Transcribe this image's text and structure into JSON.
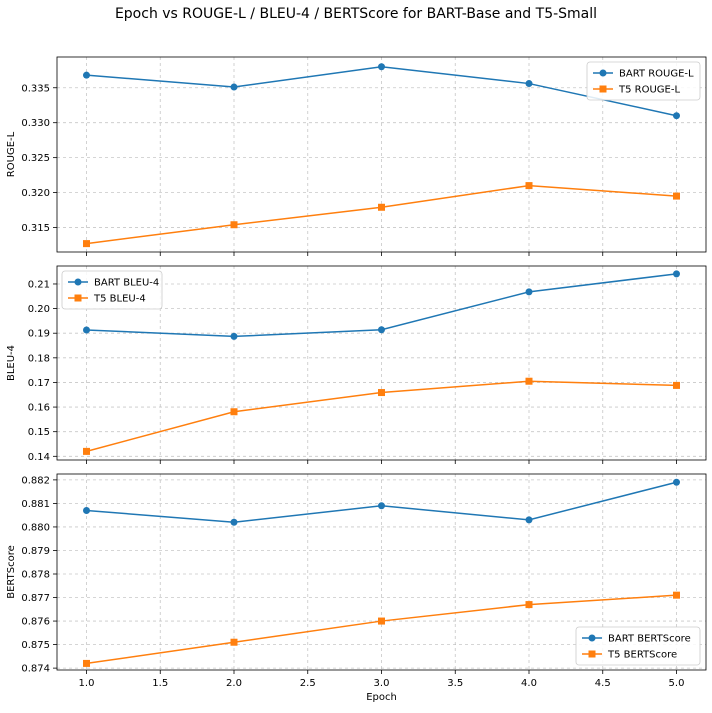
{
  "figure": {
    "title": "Epoch vs ROUGE-L / BLEU-4 / BERTScore for BART-Base and T5-Small"
  },
  "colors": {
    "bart": "#1f77b4",
    "t5": "#ff7f0e",
    "grid": "#b0b0b0"
  },
  "chart_data": [
    {
      "type": "line",
      "xlabel": "",
      "ylabel": "ROUGE-L",
      "x": [
        1,
        2,
        3,
        4,
        5
      ],
      "xlim": [
        0.8,
        5.2
      ],
      "ylim": [
        0.3115,
        0.3394
      ],
      "xticks": [
        1.0,
        1.5,
        2.0,
        2.5,
        3.0,
        3.5,
        4.0,
        4.5,
        5.0
      ],
      "yticks": [
        0.315,
        0.32,
        0.325,
        0.33,
        0.335
      ],
      "ytick_labels": [
        "0.315",
        "0.320",
        "0.325",
        "0.330",
        "0.335"
      ],
      "grid": true,
      "legend_position": "top-right",
      "series": [
        {
          "name": "BART ROUGE-L",
          "marker": "circle",
          "color": "#1f77b4",
          "values": [
            0.3368,
            0.3351,
            0.338,
            0.3356,
            0.331
          ]
        },
        {
          "name": "T5 ROUGE-L",
          "marker": "square",
          "color": "#ff7f0e",
          "values": [
            0.3127,
            0.3154,
            0.3179,
            0.321,
            0.3195
          ]
        }
      ]
    },
    {
      "type": "line",
      "xlabel": "",
      "ylabel": "BLEU-4",
      "x": [
        1,
        2,
        3,
        4,
        5
      ],
      "xlim": [
        0.8,
        5.2
      ],
      "ylim": [
        0.1385,
        0.2173
      ],
      "xticks": [
        1.0,
        1.5,
        2.0,
        2.5,
        3.0,
        3.5,
        4.0,
        4.5,
        5.0
      ],
      "yticks": [
        0.14,
        0.15,
        0.16,
        0.17,
        0.18,
        0.19,
        0.2,
        0.21
      ],
      "ytick_labels": [
        "0.14",
        "0.15",
        "0.16",
        "0.17",
        "0.18",
        "0.19",
        "0.20",
        "0.21"
      ],
      "grid": true,
      "legend_position": "top-left",
      "series": [
        {
          "name": "BART BLEU-4",
          "marker": "circle",
          "color": "#1f77b4",
          "values": [
            0.1913,
            0.1887,
            0.1914,
            0.2068,
            0.2141
          ]
        },
        {
          "name": "T5 BLEU-4",
          "marker": "square",
          "color": "#ff7f0e",
          "values": [
            0.142,
            0.1581,
            0.1659,
            0.1705,
            0.1688
          ]
        }
      ]
    },
    {
      "type": "line",
      "xlabel": "Epoch",
      "ylabel": "BERTScore",
      "x": [
        1,
        2,
        3,
        4,
        5
      ],
      "xlim": [
        0.8,
        5.2
      ],
      "ylim": [
        0.87392,
        0.88225
      ],
      "xticks": [
        1.0,
        1.5,
        2.0,
        2.5,
        3.0,
        3.5,
        4.0,
        4.5,
        5.0
      ],
      "xtick_labels": [
        "1.0",
        "1.5",
        "2.0",
        "2.5",
        "3.0",
        "3.5",
        "4.0",
        "4.5",
        "5.0"
      ],
      "yticks": [
        0.874,
        0.875,
        0.876,
        0.877,
        0.878,
        0.879,
        0.88,
        0.881,
        0.882
      ],
      "ytick_labels": [
        "0.874",
        "0.875",
        "0.876",
        "0.877",
        "0.878",
        "0.879",
        "0.880",
        "0.881",
        "0.882"
      ],
      "grid": true,
      "legend_position": "bottom-right",
      "series": [
        {
          "name": "BART BERTScore",
          "marker": "circle",
          "color": "#1f77b4",
          "values": [
            0.8807,
            0.8802,
            0.8809,
            0.8803,
            0.8819
          ]
        },
        {
          "name": "T5 BERTScore",
          "marker": "square",
          "color": "#ff7f0e",
          "values": [
            0.8742,
            0.8751,
            0.876,
            0.8767,
            0.8771
          ]
        }
      ]
    }
  ]
}
